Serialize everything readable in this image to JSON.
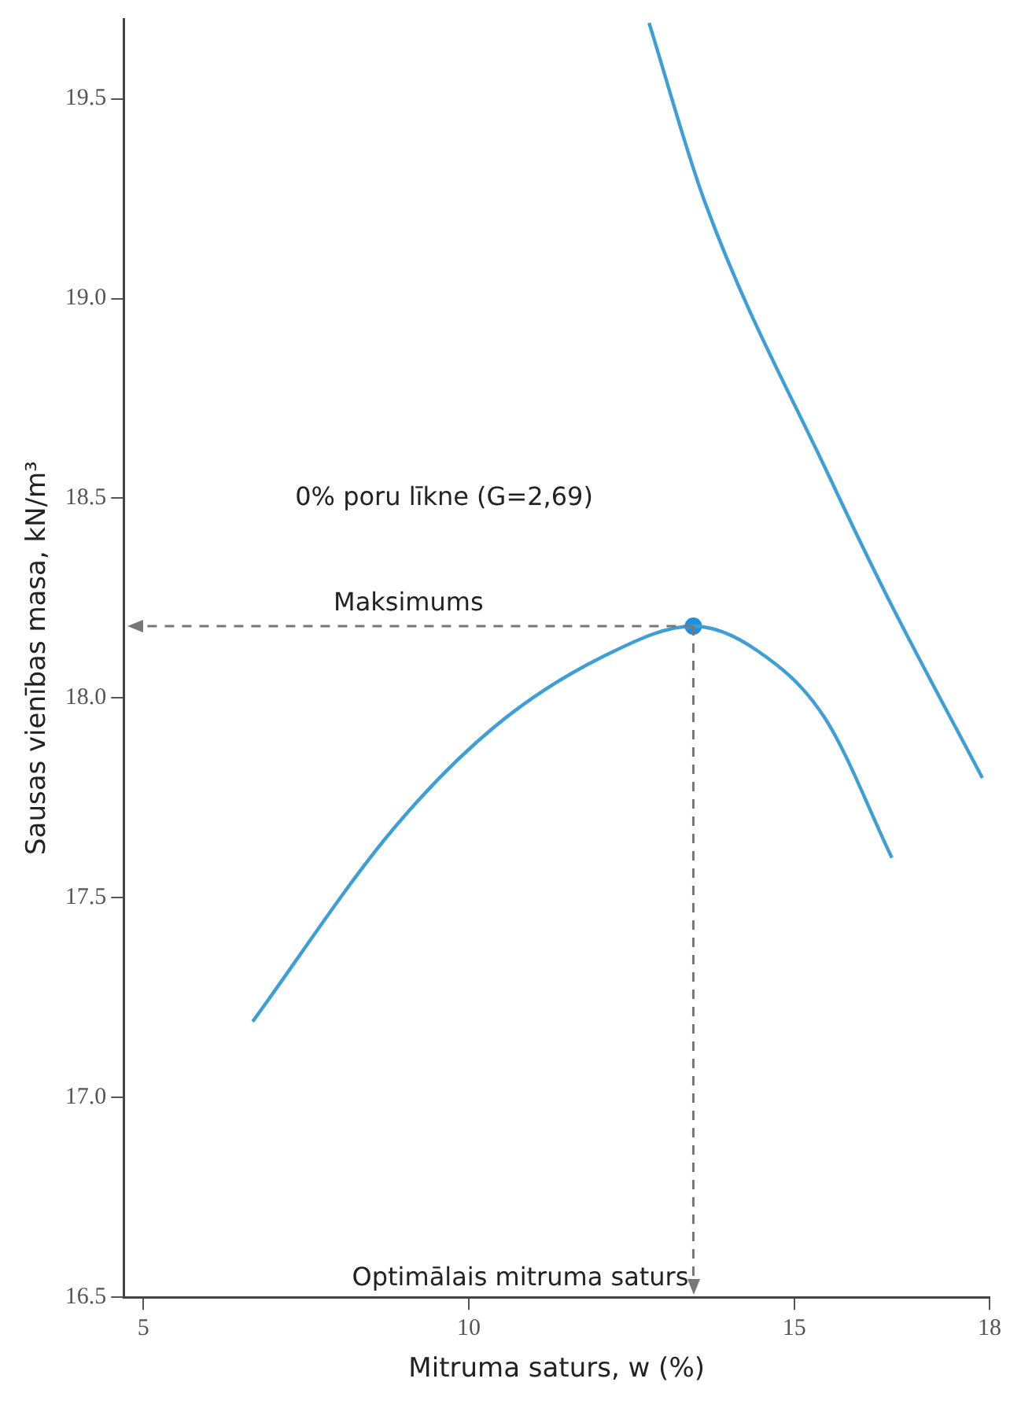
{
  "chart_data": {
    "type": "line",
    "xlabel": "Mitruma saturs, w (%)",
    "ylabel": "Sausas vienības masa, kN/m³",
    "xlim": [
      4.7,
      18
    ],
    "xticks": [
      5,
      10,
      15,
      18
    ],
    "ylim": [
      16.5,
      19.7
    ],
    "yticks": [
      {
        "value": 16.5,
        "label": "16.5"
      },
      {
        "value": 17,
        "label": "17.0"
      },
      {
        "value": 17.5,
        "label": "17.5"
      },
      {
        "value": 18,
        "label": "18.0"
      },
      {
        "value": 18.5,
        "label": "18.5"
      },
      {
        "value": 19,
        "label": "19.0"
      },
      {
        "value": 19.5,
        "label": "19.5"
      }
    ],
    "grid": false,
    "legend": false,
    "series": [
      {
        "color": "#3d9fd6",
        "marker": "none",
        "x": [
          6.68,
          8.83,
          10.41,
          12.14,
          13.45,
          14.42,
          15.47,
          16.5
        ],
        "values": [
          17.19,
          17.67,
          17.93,
          18.11,
          18.18,
          18.12,
          17.95,
          17.6
        ]
      },
      {
        "color": "#3d9fd6",
        "marker": "none",
        "x": [
          12.77,
          13.63,
          15.55,
          16.44,
          17.89
        ],
        "values": [
          19.69,
          19.24,
          18.55,
          18.25,
          17.8
        ]
      },
      {
        "type": "scatter",
        "color": "#1e8fe0",
        "marker": "circle",
        "x": [
          13.45
        ],
        "values": [
          18.18
        ]
      }
    ],
    "ref_lines": [
      {
        "axis": "y",
        "value": 18.18,
        "label": "Maksimums",
        "line_style": "dashed",
        "color": "#777777"
      },
      {
        "axis": "x",
        "value": 13.45,
        "label": "Optimālais mitruma saturs",
        "line_style": "dashed",
        "color": "#777777"
      }
    ],
    "annotations": [
      "0% poru līkne (G=2,69)"
    ]
  }
}
